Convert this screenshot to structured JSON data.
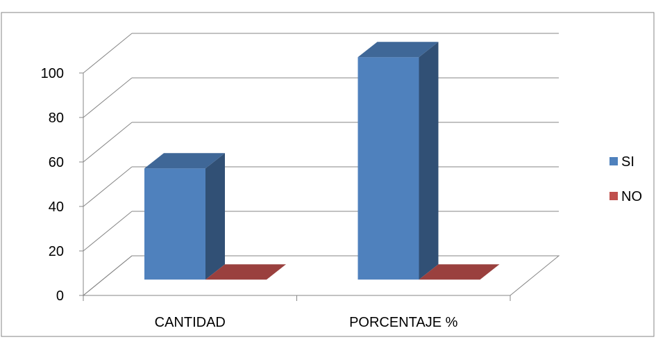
{
  "chart_data": {
    "type": "bar",
    "subtype": "3d-clustered-column",
    "title": "",
    "xlabel": "",
    "ylabel": "",
    "categories": [
      "CANTIDAD",
      "PORCENTAJE %"
    ],
    "series": [
      {
        "name": "SI",
        "values": [
          50,
          100
        ],
        "color": "#4F81BD"
      },
      {
        "name": "NO",
        "values": [
          0,
          0
        ],
        "color": "#C0504D"
      }
    ],
    "ylim": [
      0,
      100
    ],
    "yticks": [
      "0",
      "20",
      "40",
      "60",
      "80",
      "100"
    ],
    "ytick_values": [
      0,
      20,
      40,
      60,
      80,
      100
    ],
    "grid": true,
    "legend_position": "right"
  }
}
